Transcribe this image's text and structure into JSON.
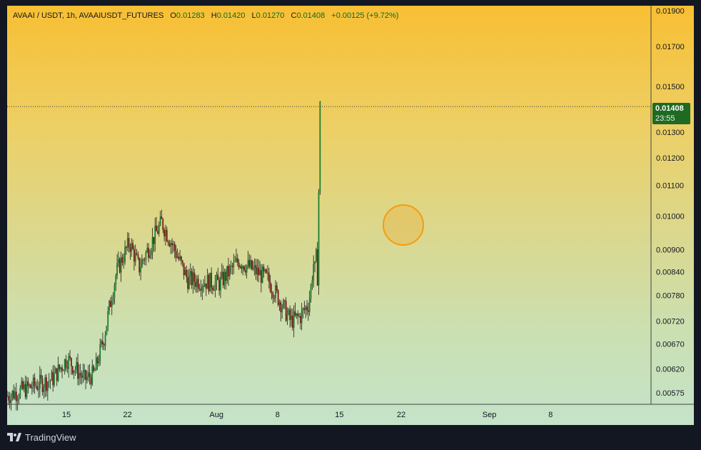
{
  "header": {
    "symbol": "AVAAI / USDT, 1h, AVAAIUSDT_FUTURES",
    "open_label": "O",
    "open": "0.01283",
    "high_label": "H",
    "high": "0.01420",
    "low_label": "L",
    "low": "0.01270",
    "close_label": "C",
    "close": "0.01408",
    "change": "+0.00125 (+9.72%)"
  },
  "price_badge": {
    "price": "0.01408",
    "countdown": "23:55"
  },
  "brand": {
    "name": "TradingView"
  },
  "colors": {
    "up": "#1e7d32",
    "down": "#7a1a1a",
    "wick": "#1a1a1a",
    "badge": "#1f6a23",
    "marker": "#f39c12"
  },
  "chart_data": {
    "type": "candlestick",
    "scale": "log",
    "y_tick_labels": [
      "0.01900",
      "0.01700",
      "0.01500",
      "0.01300",
      "0.01200",
      "0.01100",
      "0.01000",
      "0.00900",
      "0.00840",
      "0.00780",
      "0.00720",
      "0.00670",
      "0.00620",
      "0.00575"
    ],
    "x_tick_labels": [
      "15",
      "22",
      "Aug",
      "8",
      "15",
      "22",
      "Sep",
      "8"
    ],
    "ylim": [
      0.00555,
      0.0193
    ],
    "last_price": 0.01408,
    "series": [
      {
        "x": [
          "Jul 11",
          "Jul 13",
          "Jul 14",
          "Jul 15",
          "Jul 17",
          "Jul 18",
          "Jul 19",
          "Jul 20",
          "Jul 21",
          "Jul 22",
          "Jul 23",
          "Jul 25",
          "Jul 27",
          "Jul 28",
          "Jul 30",
          "Aug 1",
          "Aug 3",
          "Aug 4",
          "Aug 5",
          "Aug 7",
          "Aug 8",
          "Aug 9",
          "Aug 10",
          "Aug 11",
          "Aug 12",
          "Aug 13",
          "Aug 13b"
        ],
        "close": [
          0.0057,
          0.006,
          0.0064,
          0.006,
          0.0061,
          0.0068,
          0.0084,
          0.0092,
          0.0085,
          0.0098,
          0.0082,
          0.0081,
          0.0087,
          0.0082,
          0.0072,
          0.0073,
          0.0076,
          0.0081,
          0.0087,
          0.0085,
          0.0084,
          0.0088,
          0.0081,
          0.0083,
          0.009,
          0.0118,
          0.01408
        ]
      }
    ]
  }
}
